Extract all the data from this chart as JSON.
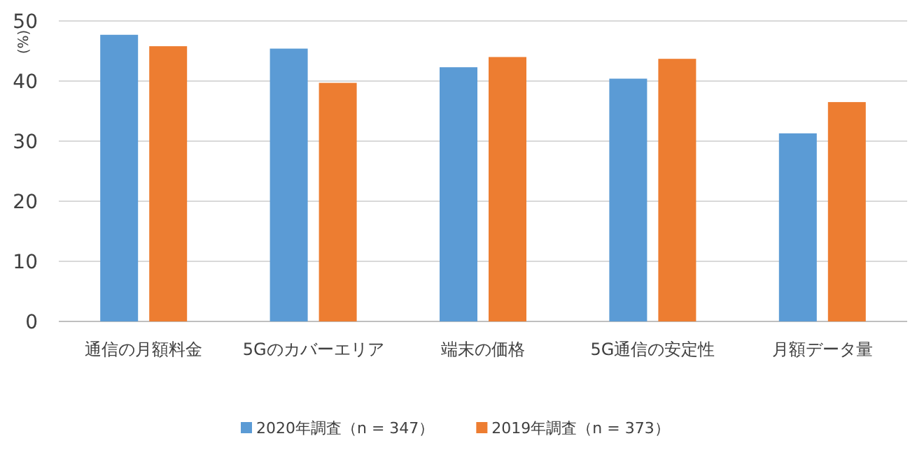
{
  "chart_data": {
    "type": "bar",
    "ylabel": "(%)",
    "categories": [
      "通信の月額料金",
      "5Gのカバーエリア",
      "端末の価格",
      "5G通信の安定性",
      "月額データ量"
    ],
    "series": [
      {
        "name": "2020年調査（n = 347）",
        "color": "#5b9bd5",
        "values": [
          47.7,
          45.4,
          42.3,
          40.4,
          31.3
        ]
      },
      {
        "name": "2019年調査（n = 373）",
        "color": "#ed7d31",
        "values": [
          45.8,
          39.7,
          44.0,
          43.7,
          36.5
        ]
      }
    ],
    "ylim": [
      0,
      50
    ],
    "yticks": [
      0,
      10,
      20,
      30,
      40,
      50
    ],
    "grid": "y",
    "legend": "bottom"
  }
}
